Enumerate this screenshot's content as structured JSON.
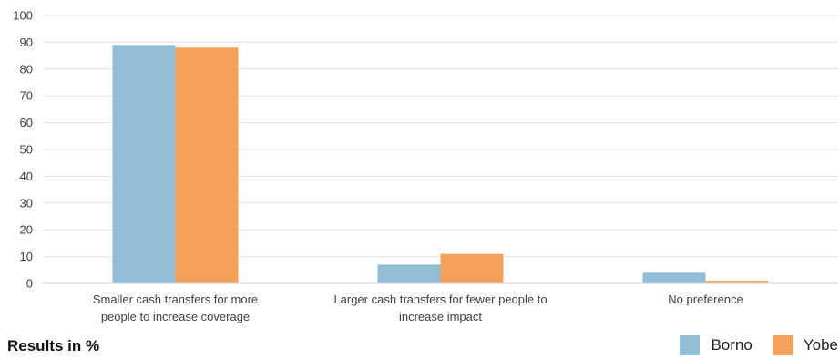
{
  "chart_data": {
    "type": "bar",
    "categories": [
      [
        "Smaller cash transfers for more",
        "people to increase coverage"
      ],
      [
        "Larger cash transfers for fewer people to",
        "increase impact"
      ],
      [
        "No preference"
      ]
    ],
    "series": [
      {
        "name": "Borno",
        "color": "#92bdd6",
        "values": [
          89,
          7,
          4
        ]
      },
      {
        "name": "Yobe",
        "color": "#f4a15e",
        "values": [
          88,
          11,
          1
        ]
      }
    ],
    "yticks": [
      0,
      10,
      20,
      30,
      40,
      50,
      60,
      70,
      80,
      90,
      100
    ],
    "ylim": [
      0,
      100
    ],
    "grid": true,
    "legend_position": "bottom-right"
  },
  "footer": {
    "note": "Results in %"
  },
  "legend": {
    "items": [
      {
        "label": "Borno",
        "color": "#92bdd6"
      },
      {
        "label": "Yobe",
        "color": "#f4a15e"
      }
    ]
  }
}
